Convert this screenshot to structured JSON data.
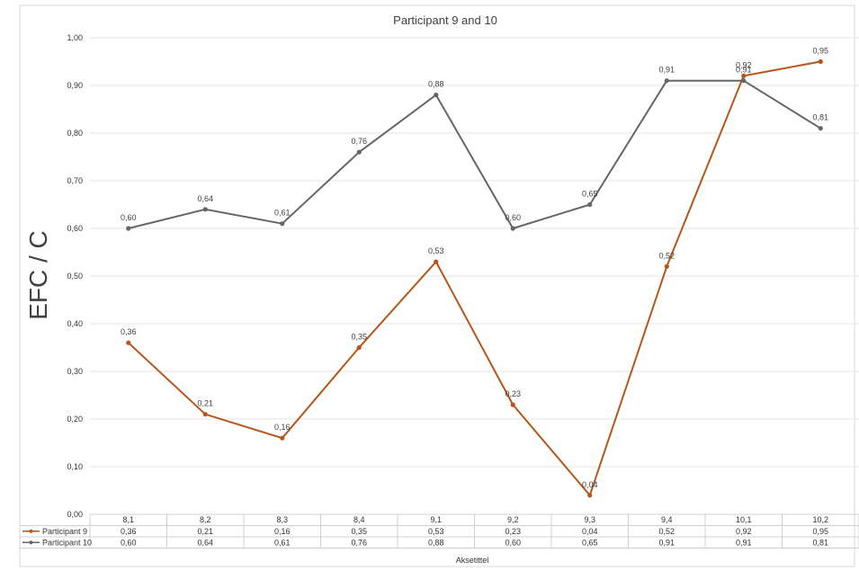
{
  "chart_data": {
    "type": "line",
    "title": "Participant 9 and 10",
    "xlabel": "Aksetittel",
    "ylabel": "EFC / C",
    "ylim": [
      0,
      1
    ],
    "y_ticks": [
      "0,00",
      "0,10",
      "0,20",
      "0,30",
      "0,40",
      "0,50",
      "0,60",
      "0,70",
      "0,80",
      "0,90",
      "1,00"
    ],
    "grid": true,
    "legend": "data-table",
    "categories": [
      "8,1",
      "8,2",
      "8,3",
      "8,4",
      "9,1",
      "9,2",
      "9,3",
      "9,4",
      "10,1",
      "10,2"
    ],
    "series": [
      {
        "name": "Participant 9",
        "color": "#b5561c",
        "values": [
          0.36,
          0.21,
          0.16,
          0.35,
          0.53,
          0.23,
          0.04,
          0.52,
          0.92,
          0.95
        ],
        "labels": [
          "0,36",
          "0,21",
          "0,16",
          "0,35",
          "0,53",
          "0,23",
          "0,04",
          "0,52",
          "0,92",
          "0,95"
        ]
      },
      {
        "name": "Participant 10",
        "color": "#666666",
        "values": [
          0.6,
          0.64,
          0.61,
          0.76,
          0.88,
          0.6,
          0.65,
          0.91,
          0.91,
          0.81
        ],
        "labels": [
          "0,60",
          "0,64",
          "0,61",
          "0,76",
          "0,88",
          "0,60",
          "0,65",
          "0,91",
          "0,91",
          "0,81"
        ]
      }
    ]
  }
}
